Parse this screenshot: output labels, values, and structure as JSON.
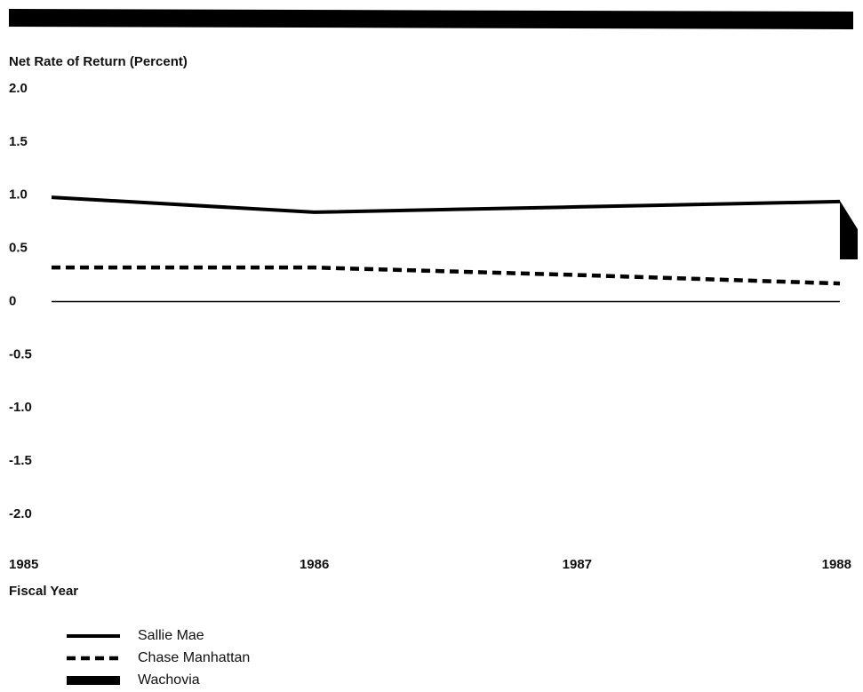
{
  "chart_data": {
    "type": "line",
    "y_label": "Net Rate of Return (Percent)",
    "x_label": "Fiscal Year",
    "x": [
      1985,
      1986,
      1987,
      1988
    ],
    "xlim": [
      1985,
      1988
    ],
    "xticks": [
      1985,
      1986,
      1987,
      1988
    ],
    "ylim": [
      -2,
      2
    ],
    "yticks": [
      {
        "value": 2,
        "label": "2.0"
      },
      1.5,
      {
        "value": 1,
        "label": "1.0"
      },
      0.5,
      0,
      -0.5,
      {
        "value": -1,
        "label": "-1.0"
      },
      -1.5,
      {
        "value": -2,
        "label": "-2.0"
      }
    ],
    "series": [
      {
        "name": "Sallie Mae",
        "color": "#000000",
        "style": "solid",
        "values": [
          0.98,
          0.84,
          0.89,
          0.94
        ]
      },
      {
        "name": "Chase Manhattan",
        "color": "#000000",
        "style": "dashed",
        "values": [
          0.32,
          0.32,
          0.25,
          0.17
        ]
      },
      {
        "name": "Wachovia",
        "color": "#000000",
        "style": "bar",
        "values": [
          null,
          null,
          null,
          null
        ]
      }
    ]
  }
}
